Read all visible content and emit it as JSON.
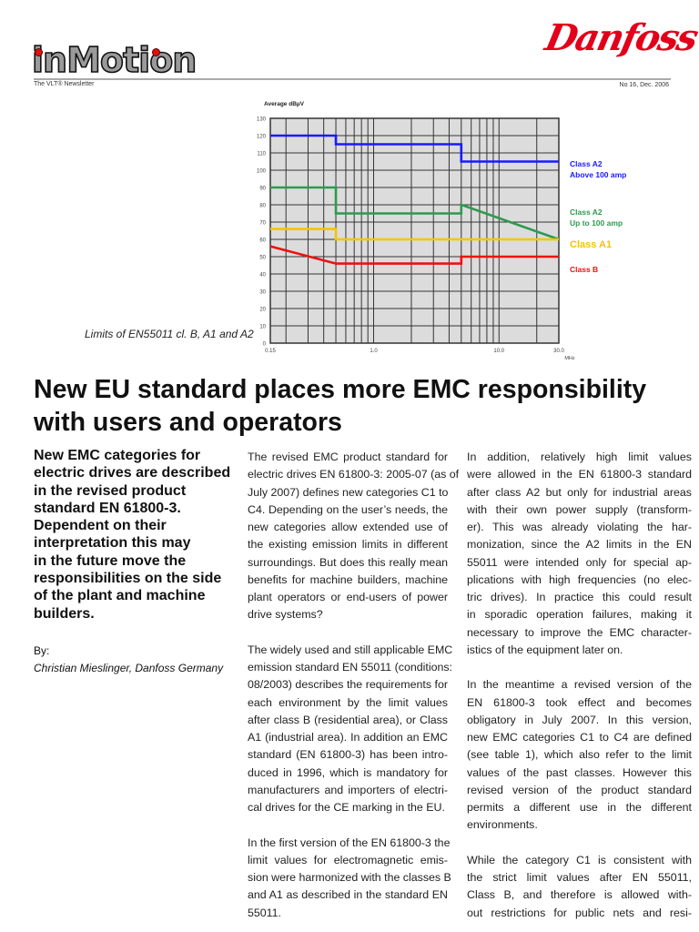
{
  "header": {
    "logo_text": "inMotion",
    "tagline": "The VLT® Newsletter",
    "brand": "Danfoss",
    "issue": "No 16, Dec. 2006"
  },
  "chart_data": {
    "type": "line",
    "ylabel": "Average dBµV",
    "xlabel": "MHz",
    "xscale": "log",
    "xlim": [
      0.15,
      30
    ],
    "ylim": [
      0,
      130
    ],
    "yticks": [
      0,
      10,
      20,
      30,
      40,
      50,
      60,
      70,
      80,
      90,
      100,
      110,
      120,
      130
    ],
    "xticks": [
      {
        "v": 0.15,
        "label": "0.15"
      },
      {
        "v": 1,
        "label": "1.0"
      },
      {
        "v": 10,
        "label": "10.0"
      },
      {
        "v": 30,
        "label": "30.0"
      }
    ],
    "grid": true,
    "legend_placement": "right",
    "series": [
      {
        "name": "Class A2",
        "sub": "Above 100 amp",
        "color": "#1a1aff",
        "points": [
          [
            0.15,
            120
          ],
          [
            0.5,
            120
          ],
          [
            0.5,
            115
          ],
          [
            5,
            115
          ],
          [
            5,
            105
          ],
          [
            30,
            105
          ]
        ]
      },
      {
        "name": "Class A2",
        "sub": "Up to 100 amp",
        "color": "#2e9a4e",
        "points": [
          [
            0.15,
            90
          ],
          [
            0.5,
            90
          ],
          [
            0.5,
            75
          ],
          [
            5,
            75
          ],
          [
            5,
            80
          ],
          [
            30,
            60
          ]
        ]
      },
      {
        "name": "Class A1",
        "sub": "",
        "color": "#f5c400",
        "points": [
          [
            0.15,
            66
          ],
          [
            0.5,
            66
          ],
          [
            0.5,
            60
          ],
          [
            30,
            60
          ]
        ]
      },
      {
        "name": "Class B",
        "sub": "",
        "color": "#ee1111",
        "points": [
          [
            0.15,
            56
          ],
          [
            0.5,
            46
          ],
          [
            5,
            46
          ],
          [
            5,
            50
          ],
          [
            30,
            50
          ]
        ]
      }
    ]
  },
  "caption": "Limits of EN55011 cl. B, A1 and A2",
  "title_lines": [
    "New EU standard places more EMC responsibility",
    "with users and operators"
  ],
  "lead_lines": [
    "New EMC categories for",
    "electric drives are described",
    "in the revised product",
    "standard EN 61800-3.",
    "Dependent on their",
    "interpretation this may",
    "in the future move the",
    "responsibilities on the side",
    "of the plant and machine",
    "builders."
  ],
  "byline": {
    "label": "By:",
    "author": "Christian Mieslinger, Danfoss Germany"
  },
  "columns": [
    [
      [
        "The revised EMC product standard for",
        "electric drives EN 61800-3: 2005-07 (as of",
        "July 2007) defines new categories C1 to",
        "C4. Depending on the user’s needs, the",
        "new categories allow extended use of",
        "the existing emission limits in different",
        "surroundings. But does this really mean",
        "benefits for machine builders, machine",
        "plant operators or end-users of power",
        "drive systems?"
      ],
      [
        "The widely used and still applicable EMC",
        "emission standard EN 55011 (conditions:",
        "08/2003) describes the requirements for",
        "each environment by the limit values",
        "after class B (residential area), or Class",
        "A1 (industrial area). In addition an EMC",
        "standard (EN 61800-3) has been intro-",
        "duced in 1996, which is mandatory for",
        "manufacturers and importers of electri-",
        "cal drives for the CE marking in the EU."
      ],
      [
        "In the first version of the EN 61800-3 the",
        "limit values for electromagnetic emis-",
        "sion were harmonized with the classes B",
        "and A1 as described in the standard EN",
        "55011."
      ]
    ],
    [
      [
        "In addition, relatively high limit values",
        "were allowed in the EN 61800-3 standard",
        "after class A2 but only for industrial areas",
        "with their own power supply (transform-",
        "er). This was already violating the har-",
        "monization, since the A2 limits in the EN",
        "55011 were intended only for special ap-",
        "plications with high frequencies (no elec-",
        "tric drives). In practice this could result",
        "in sporadic operation failures, making it",
        "necessary to improve the EMC character-",
        "istics of the equipment later on."
      ],
      [
        "In the meantime a revised version of the",
        "EN 61800-3 took effect and becomes",
        "obligatory in July 2007. In this version,",
        "new EMC categories C1 to C4 are defined",
        "(see table 1), which also refer to the limit",
        "values of the past classes. However this",
        "revised version of the product standard",
        "permits a different use in the different",
        "environments."
      ],
      [
        "While the category C1 is consistent with",
        "the strict limit values after EN 55011,",
        "Class B, and therefore is allowed with-",
        "out restrictions for public nets and resi-"
      ]
    ]
  ]
}
